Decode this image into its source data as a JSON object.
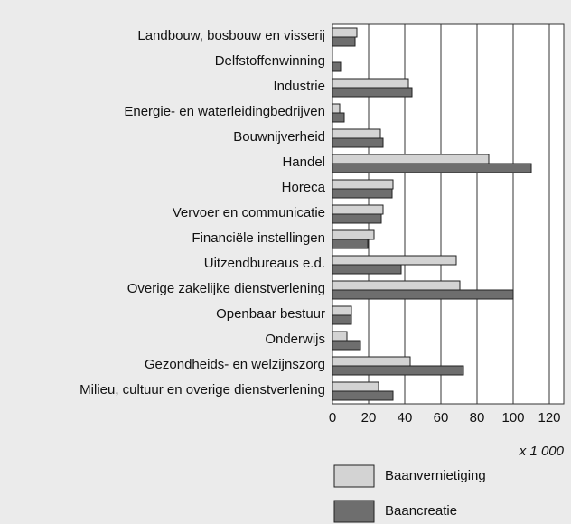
{
  "chart_data": {
    "type": "hbar",
    "categories": [
      "Landbouw, bosbouw en visserij",
      "Delfstoffenwinning",
      "Industrie",
      "Energie- en waterleidingbedrijven",
      "Bouwnijverheid",
      "Handel",
      "Horeca",
      "Vervoer en communicatie",
      "Financiële instellingen",
      "Uitzendbureaus e.d.",
      "Overige zakelijke dienstverlening",
      "Openbaar bestuur",
      "Onderwijs",
      "Gezondheids- en welzijnszorg",
      "Milieu, cultuur en overige dienstverlening"
    ],
    "series": [
      {
        "name": "Baanvernietiging",
        "color": "#d3d3d3",
        "values": [
          13.5,
          0,
          42,
          4,
          26.5,
          86.5,
          33.5,
          28,
          23,
          68.5,
          70.5,
          10.5,
          8,
          43,
          25.5
        ]
      },
      {
        "name": "Baancreatie",
        "color": "#6e6e6e",
        "values": [
          12.5,
          4.5,
          44,
          6.5,
          28,
          110,
          33,
          27,
          19.5,
          38,
          100,
          10.5,
          15.5,
          72.5,
          33.5
        ]
      }
    ],
    "xlim": [
      0,
      128
    ],
    "xticks": [
      0,
      20,
      40,
      60,
      80,
      100,
      120
    ],
    "unit_label": "x 1 000",
    "grid": true
  }
}
